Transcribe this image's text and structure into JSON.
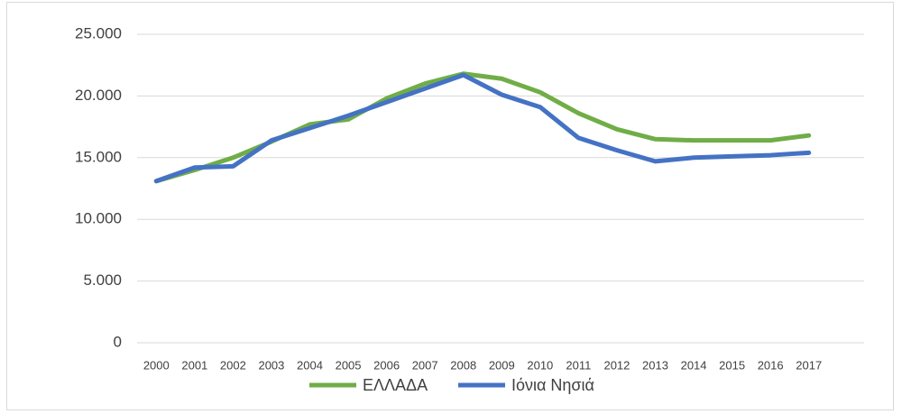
{
  "chart_data": {
    "type": "line",
    "categories": [
      "2000",
      "2001",
      "2002",
      "2003",
      "2004",
      "2005",
      "2006",
      "2007",
      "2008",
      "2009",
      "2010",
      "2011",
      "2012",
      "2013",
      "2014",
      "2015",
      "2016",
      "2017"
    ],
    "series": [
      {
        "name": "ΕΛΛΑΔΑ",
        "color": "#70ad47",
        "values": [
          13100,
          14000,
          15000,
          16300,
          17700,
          18100,
          19800,
          21000,
          21800,
          21400,
          20300,
          18600,
          17300,
          16500,
          16400,
          16400,
          16400,
          16800
        ]
      },
      {
        "name": "Ιόνια Νησιά",
        "color": "#4472c4",
        "values": [
          13100,
          14200,
          14300,
          16400,
          17400,
          18400,
          19500,
          20600,
          21700,
          20100,
          19100,
          16600,
          15600,
          14700,
          15000,
          15100,
          15200,
          15400
        ]
      }
    ],
    "ylim": [
      0,
      25000
    ],
    "yticks": [
      0,
      {
        "value": 5000,
        "label": "5.000"
      },
      {
        "value": 10000,
        "label": "10.000"
      },
      {
        "value": 15000,
        "label": "15.000"
      },
      {
        "value": 20000,
        "label": "20.000"
      },
      {
        "value": 25000,
        "label": "25.000"
      }
    ],
    "grid": true,
    "legend": "bottom"
  }
}
